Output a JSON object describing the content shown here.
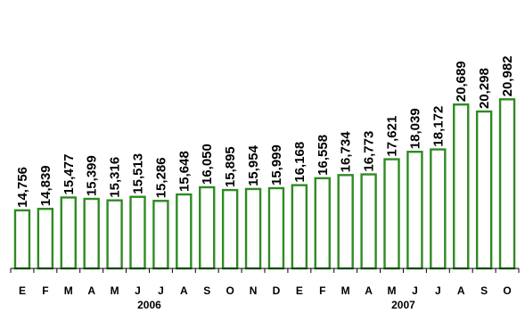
{
  "chart_data": {
    "type": "bar",
    "title": "",
    "xlabel": "",
    "ylabel": "",
    "categories": [
      "E",
      "F",
      "M",
      "A",
      "M",
      "J",
      "J",
      "A",
      "S",
      "O",
      "N",
      "D",
      "E",
      "F",
      "M",
      "A",
      "M",
      "J",
      "J",
      "A",
      "S",
      "O"
    ],
    "values": [
      14756,
      14839,
      15477,
      15399,
      15316,
      15513,
      15286,
      15648,
      16050,
      15895,
      15954,
      15999,
      16168,
      16558,
      16734,
      16773,
      17621,
      18039,
      18172,
      20689,
      20298,
      20982
    ],
    "data_labels": [
      "14,756",
      "14,839",
      "15,477",
      "15,399",
      "15,316",
      "15,513",
      "15,286",
      "15,648",
      "16,050",
      "15,895",
      "15,954",
      "15,999",
      "16,168",
      "16,558",
      "16,734",
      "16,773",
      "17,621",
      "18,039",
      "18,172",
      "20,689",
      "20,298",
      "20,982"
    ],
    "year_groups": [
      {
        "label": "2006",
        "start_index": 0,
        "end_index": 11
      },
      {
        "label": "2007",
        "start_index": 12,
        "end_index": 21
      }
    ],
    "ylim": [
      11500,
      21300
    ],
    "grid": false,
    "legend": "none",
    "bar_color": "#2e8b22"
  }
}
